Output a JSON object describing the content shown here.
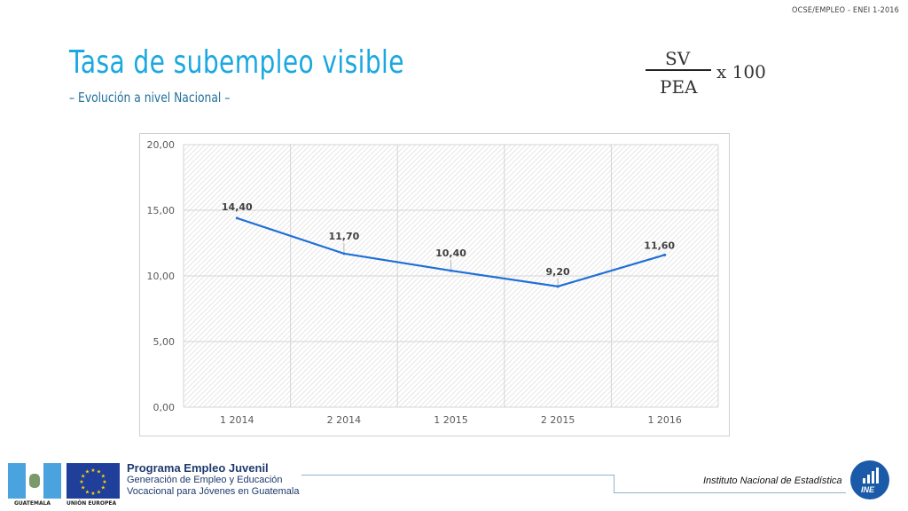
{
  "header": {
    "reference": "OCSE/EMPLEO - ENEI 1-2016",
    "title": "Tasa de subempleo visible",
    "subtitle": "– Evolución a nivel Nacional –"
  },
  "formula": {
    "numerator": "SV",
    "denominator": "PEA",
    "multiplier": "x 100"
  },
  "chart_data": {
    "type": "line",
    "categories": [
      "1 2014",
      "2 2014",
      "1 2015",
      "2 2015",
      "1 2016"
    ],
    "series": [
      {
        "values": [
          14.4,
          11.7,
          10.4,
          9.2,
          11.6
        ],
        "color": "#1f6fd6"
      }
    ],
    "data_labels": [
      "14,40",
      "11,70",
      "10,40",
      "9,20",
      "11,60"
    ],
    "y_ticks": [
      "0,00",
      "5,00",
      "10,00",
      "15,00",
      "20,00"
    ],
    "ylim": [
      0,
      20
    ],
    "grid": true,
    "legend": "none"
  },
  "footer": {
    "flag_label": "GUATEMALA",
    "eu_label": "UNIÓN EUROPEA",
    "program_title": "Programa Empleo Juvenil",
    "program_line2": "Generación de Empleo y Educación",
    "program_line3": "Vocacional para Jóvenes en Guatemala",
    "institute": "Instituto Nacional de Estadística",
    "logo_text": "INE"
  },
  "colors": {
    "title": "#1aa8e0",
    "subtitle": "#1f6f9a",
    "line": "#1f6fd6",
    "program_text": "#1f3a6d",
    "ine_logo": "#1a5aa8"
  }
}
